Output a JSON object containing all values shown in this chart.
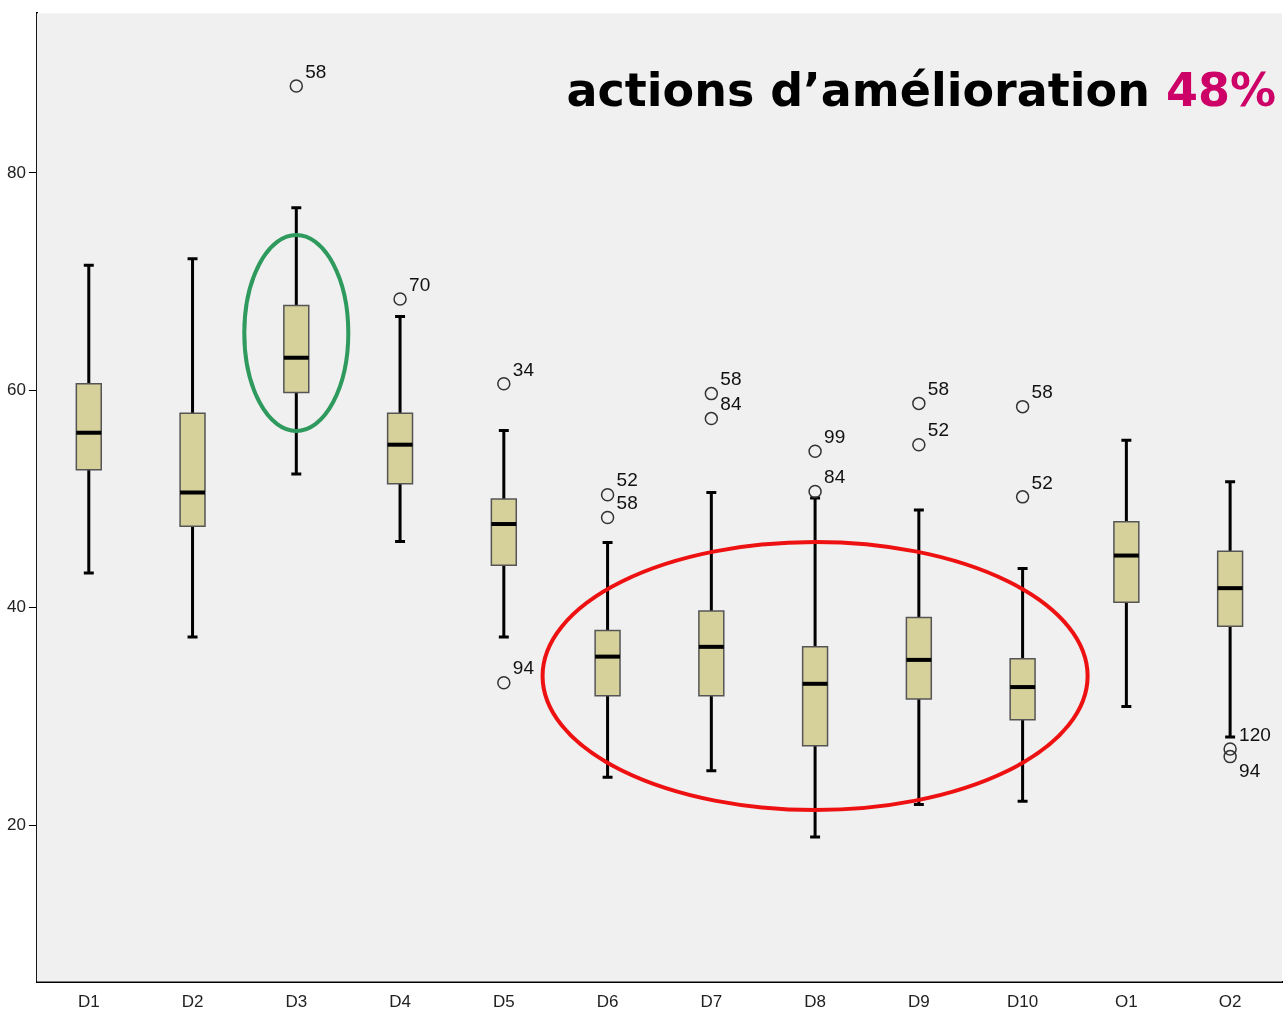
{
  "chart_data": {
    "type": "box",
    "title": "actions d’amélioration 48%",
    "categories": [
      "D1",
      "D2",
      "D3",
      "D4",
      "D5",
      "D6",
      "D7",
      "D8",
      "D9",
      "D10",
      "O1",
      "O2"
    ],
    "color": "#d6d09a",
    "ylim": [
      5.6,
      94.7
    ],
    "yticks": [
      20,
      40,
      60,
      80
    ],
    "boxes": [
      {
        "low": 43.2,
        "q1": 52.7,
        "median": 56.1,
        "q3": 60.6,
        "high": 71.5
      },
      {
        "low": 37.3,
        "q1": 47.5,
        "median": 50.6,
        "q3": 57.9,
        "high": 72.1
      },
      {
        "low": 52.3,
        "q1": 59.8,
        "median": 63.0,
        "q3": 67.8,
        "high": 76.8
      },
      {
        "low": 46.1,
        "q1": 51.4,
        "median": 55.0,
        "q3": 57.9,
        "high": 66.8
      },
      {
        "low": 37.3,
        "q1": 43.9,
        "median": 47.7,
        "q3": 50.0,
        "high": 56.3
      },
      {
        "low": 24.4,
        "q1": 31.9,
        "median": 35.5,
        "q3": 37.9,
        "high": 46.0
      },
      {
        "low": 25.0,
        "q1": 31.9,
        "median": 36.4,
        "q3": 39.7,
        "high": 50.6
      },
      {
        "low": 18.9,
        "q1": 27.3,
        "median": 33.0,
        "q3": 36.4,
        "high": 50.1
      },
      {
        "low": 21.9,
        "q1": 31.6,
        "median": 35.2,
        "q3": 39.1,
        "high": 49.0
      },
      {
        "low": 22.2,
        "q1": 29.7,
        "median": 32.7,
        "q3": 35.3,
        "high": 43.6
      },
      {
        "low": 30.9,
        "q1": 40.5,
        "median": 44.8,
        "q3": 47.9,
        "high": 55.4
      },
      {
        "low": 28.1,
        "q1": 38.3,
        "median": 41.8,
        "q3": 45.2,
        "high": 51.6
      }
    ],
    "series": [
      {
        "type": "scatter",
        "color": "#333333",
        "marker": "circle",
        "x": [
          "D3",
          "D4",
          "D5",
          "D5",
          "D6",
          "D6",
          "D7",
          "D7",
          "D8",
          "D8",
          "D9",
          "D9",
          "D10",
          "D10",
          "O2",
          "O2"
        ],
        "values": [
          88.0,
          68.4,
          60.6,
          33.1,
          50.4,
          48.3,
          59.7,
          57.4,
          54.4,
          50.7,
          58.8,
          55.0,
          58.5,
          50.2,
          27.0,
          26.3
        ]
      }
    ],
    "annotations": [
      {
        "text": "58",
        "x": "D3",
        "y": 88.0
      },
      {
        "text": "70",
        "x": "D4",
        "y": 68.4
      },
      {
        "text": "34",
        "x": "D5",
        "y": 60.6
      },
      {
        "text": "94",
        "x": "D5",
        "y": 33.1
      },
      {
        "text": "52",
        "x": "D6",
        "y": 50.4
      },
      {
        "text": "58",
        "x": "D6",
        "y": 48.3
      },
      {
        "text": "58",
        "x": "D7",
        "y": 59.7
      },
      {
        "text": "84",
        "x": "D7",
        "y": 57.4
      },
      {
        "text": "99",
        "x": "D8",
        "y": 54.4
      },
      {
        "text": "84",
        "x": "D8",
        "y": 50.7
      },
      {
        "text": "58",
        "x": "D9",
        "y": 58.8
      },
      {
        "text": "52",
        "x": "D9",
        "y": 55.0
      },
      {
        "text": "58",
        "x": "D10",
        "y": 58.5
      },
      {
        "text": "52",
        "x": "D10",
        "y": 50.2
      },
      {
        "text": "120",
        "x": "O2",
        "y": 27.0
      },
      {
        "text": "94",
        "x": "O2",
        "y": 26.3
      }
    ]
  }
}
